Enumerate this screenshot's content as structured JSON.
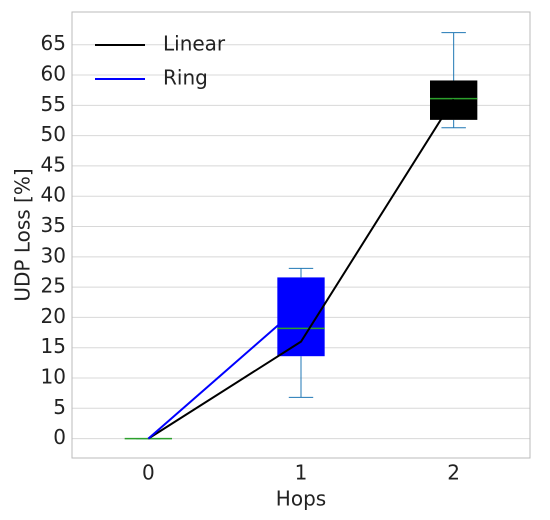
{
  "chart_data": {
    "type": "box",
    "xlabel": "Hops",
    "ylabel": "UDP Loss [%]",
    "xlim": [
      -0.5,
      2.5
    ],
    "ylim": [
      -3.2,
      70.4
    ],
    "xticks": [
      0,
      1,
      2
    ],
    "yticks": [
      0,
      5,
      10,
      15,
      20,
      25,
      30,
      35,
      40,
      45,
      50,
      55,
      60,
      65
    ],
    "grid": "y",
    "legend": "upper left",
    "boxes": {
      "positions": [
        0,
        1,
        2
      ],
      "whisker_low": [
        0,
        6.8,
        51.3
      ],
      "q1": [
        0,
        13.6,
        52.6
      ],
      "median": [
        0,
        18.2,
        56.1
      ],
      "q3": [
        0,
        26.6,
        59.1
      ],
      "whisker_high": [
        0,
        28.1,
        67
      ],
      "colors": [
        "#0000ff",
        "#0000ff",
        "#000000"
      ],
      "whisker_color": "#1f77b4",
      "median_color": "#2ca02c"
    },
    "series": [
      {
        "name": "Linear",
        "color": "#000000",
        "x": [
          0,
          1,
          2
        ],
        "values": [
          0,
          16,
          56
        ]
      },
      {
        "name": "Ring",
        "color": "#0000ff",
        "x": [
          0,
          1
        ],
        "values": [
          0,
          22
        ]
      }
    ]
  }
}
